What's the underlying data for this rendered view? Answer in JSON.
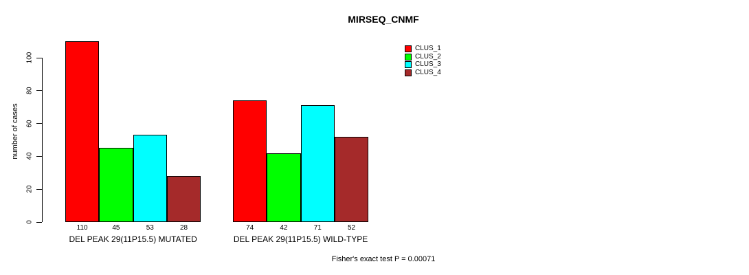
{
  "chart_data": {
    "type": "bar",
    "title": "MIRSEQ_CNMF",
    "xlabel": "",
    "ylabel": "number of cases",
    "ylim": [
      0,
      110
    ],
    "yticks": [
      0,
      20,
      40,
      60,
      80,
      100
    ],
    "grid": false,
    "legend_position": "top-right",
    "categories": [
      "DEL PEAK 29(11P15.5) MUTATED",
      "DEL PEAK 29(11P15.5) WILD-TYPE"
    ],
    "series": [
      {
        "name": "CLUS_1",
        "color": "#FF0000",
        "values": [
          110,
          74
        ]
      },
      {
        "name": "CLUS_2",
        "color": "#00FF00",
        "values": [
          45,
          42
        ]
      },
      {
        "name": "CLUS_3",
        "color": "#00FFFF",
        "values": [
          53,
          71
        ]
      },
      {
        "name": "CLUS_4",
        "color": "#A52A2A",
        "values": [
          28,
          52
        ]
      }
    ],
    "bar_value_labels": [
      [
        110,
        45,
        53,
        28
      ],
      [
        74,
        42,
        71,
        52
      ]
    ],
    "annotation": "Fisher's exact test P = 0.00071",
    "bar_border_color": "#000000",
    "axis_color": "#000000"
  }
}
